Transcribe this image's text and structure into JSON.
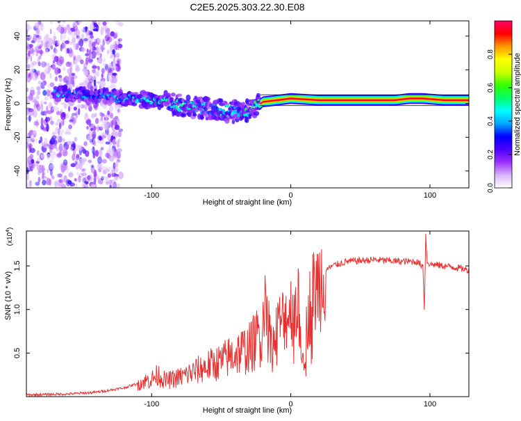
{
  "title": "C2E5.2025.303.22.30.E08",
  "chart_data": [
    {
      "type": "heatmap",
      "title": "C2E5.2025.303.22.30.E08",
      "xlabel": "Height of straight line (km)",
      "ylabel": "Frequency (Hz)",
      "xlim": [
        -190,
        128
      ],
      "ylim": [
        -50,
        49
      ],
      "x_ticks": [
        -100,
        0,
        100
      ],
      "x_tick_labels": [
        "-100",
        "0",
        "100"
      ],
      "y_ticks": [
        -40,
        -20,
        0,
        20,
        40
      ],
      "y_tick_labels": [
        "-40",
        "-20",
        "0",
        "20",
        "40"
      ],
      "colorbar": {
        "label": "Normalized spectral amplitude",
        "range": [
          0,
          1
        ],
        "ticks": [
          0,
          0.2,
          0.4,
          0.6,
          0.8
        ],
        "tick_labels": [
          "0.0",
          "0.2",
          "0.4",
          "0.6",
          "0.8"
        ],
        "colors": [
          "#ffffff",
          "#d8b4ff",
          "#9b30ff",
          "#4b00ff",
          "#0000ff",
          "#00a8ff",
          "#00ffff",
          "#00ff66",
          "#33ff00",
          "#ccff00",
          "#ffff00",
          "#ff9900",
          "#ff0000",
          "#ff0066"
        ]
      },
      "ridge": {
        "x": [
          -165,
          -140,
          -120,
          -100,
          -80,
          -60,
          -40,
          -30,
          -25,
          -20,
          -10,
          0,
          20,
          40,
          60,
          75,
          85,
          95,
          110,
          128
        ],
        "y": [
          6,
          5,
          3,
          2,
          -1,
          -3,
          -5,
          -4,
          -2,
          1,
          2,
          3,
          2,
          2,
          2,
          2,
          3,
          3,
          2,
          2
        ],
        "peak": [
          0.45,
          0.4,
          0.45,
          0.5,
          0.48,
          0.5,
          0.5,
          0.5,
          0.6,
          0.75,
          0.8,
          0.9,
          0.95,
          0.95,
          0.95,
          0.9,
          0.85,
          0.95,
          0.95,
          0.95
        ]
      },
      "noise_region": [
        -190,
        -130
      ]
    },
    {
      "type": "line",
      "xlabel": "Height of straight line (km)",
      "ylabel": "SNR (10 * v/v)",
      "y_multiplier": "(x10",
      "y_exponent": "4",
      "y_multiplier_close": ")",
      "xlim": [
        -190,
        128
      ],
      "ylim": [
        0,
        1.9
      ],
      "x_ticks": [
        -100,
        0,
        100
      ],
      "x_tick_labels": [
        "-100",
        "0",
        "100"
      ],
      "y_ticks": [
        0.5,
        1.0,
        1.5
      ],
      "y_tick_labels": [
        "0.5",
        "1.0",
        "1.5"
      ],
      "color": "#e83030",
      "series": [
        {
          "name": "SNR",
          "x": [
            -190,
            -160,
            -140,
            -120,
            -110,
            -100,
            -95,
            -90,
            -80,
            -70,
            -60,
            -50,
            -40,
            -30,
            -25,
            -20,
            -19,
            -15,
            -12,
            -10,
            -5,
            0,
            5,
            8,
            10,
            12,
            15,
            20,
            25,
            30,
            40,
            50,
            60,
            70,
            80,
            90,
            95,
            96,
            97,
            98,
            100,
            110,
            120,
            128
          ],
          "y": [
            0.02,
            0.03,
            0.05,
            0.1,
            0.15,
            0.2,
            0.25,
            0.18,
            0.22,
            0.28,
            0.35,
            0.4,
            0.5,
            0.55,
            0.65,
            0.8,
            1.3,
            0.7,
            0.6,
            0.8,
            0.9,
            1.0,
            1.1,
            0.6,
            0.5,
            0.9,
            1.15,
            1.3,
            1.45,
            1.5,
            1.55,
            1.56,
            1.57,
            1.56,
            1.55,
            1.55,
            1.5,
            1.0,
            1.85,
            1.55,
            1.52,
            1.5,
            1.48,
            1.45
          ]
        }
      ]
    }
  ]
}
